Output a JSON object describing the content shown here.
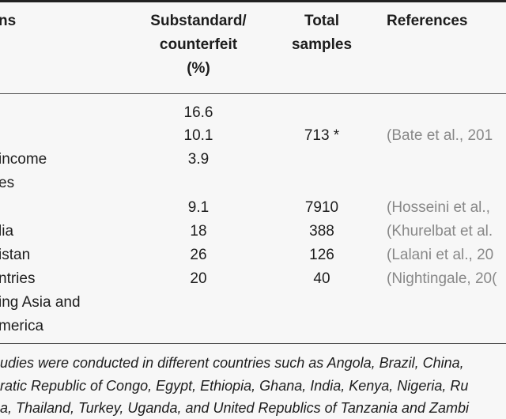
{
  "headers": {
    "col1": "ns",
    "col2_line1": "Substandard/",
    "col2_line2": "counterfeit",
    "col2_line3": "(%)",
    "col3_line1": "Total",
    "col3_line2": "samples",
    "col4": "References"
  },
  "rows": [
    {
      "location": "",
      "percent": "16.6",
      "total": "",
      "reference": ""
    },
    {
      "location": "",
      "percent": "10.1",
      "total": "713 *",
      "reference": "(Bate et al., 201"
    },
    {
      "location": " income",
      "percent": "3.9",
      "total": "",
      "reference": ""
    },
    {
      "location": "es",
      "percent": "",
      "total": "",
      "reference": ""
    },
    {
      "location": "",
      "percent": "9.1",
      "total": "7910",
      "reference": "(Hosseini et al.,"
    },
    {
      "location": "lia",
      "percent": "18",
      "total": "388",
      "reference": "(Khurelbat et al."
    },
    {
      "location": "istan",
      "percent": "26",
      "total": "126",
      "reference": "(Lalani et al., 20"
    },
    {
      "location": "ntries",
      "percent": "20",
      "total": "40",
      "reference": "(Nightingale, 20("
    },
    {
      "location": "ing Asia and",
      "percent": "",
      "total": "",
      "reference": ""
    },
    {
      "location": "merica",
      "percent": "",
      "total": "",
      "reference": ""
    }
  ],
  "footnote": {
    "line1": "udies were conducted in different countries such as Angola, Brazil, China,",
    "line2": "ratic Republic of Congo, Egypt, Ethiopia, Ghana, India, Kenya, Nigeria, Ru",
    "line3": "a, Thailand, Turkey, Uganda, and United Republics of Tanzania and Zambi"
  }
}
